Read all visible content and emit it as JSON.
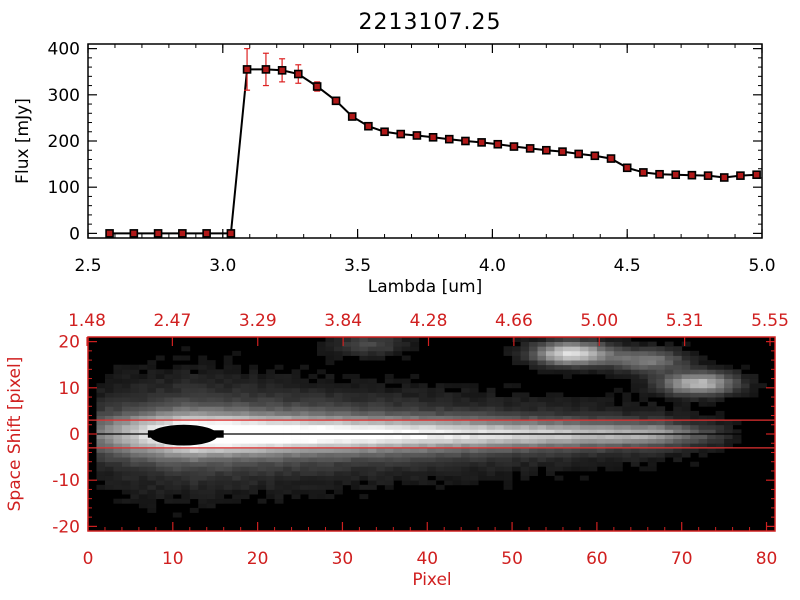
{
  "title": "2213107.25",
  "colors": {
    "axis_top": "#000000",
    "axis_bottom": "#d02020",
    "marker": "#b01818",
    "errorbar": "#dd2222",
    "line": "#000000",
    "image_bg": "#000000"
  },
  "chart_data": [
    {
      "type": "line",
      "name": "spectrum",
      "title": "2213107.25",
      "xlabel": "Lambda [um]",
      "ylabel": "Flux [mJy]",
      "xlim": [
        2.5,
        5.0
      ],
      "ylim": [
        -10,
        410
      ],
      "xticks": [
        "2.5",
        "3.0",
        "3.5",
        "4.0",
        "4.5",
        "5.0"
      ],
      "yticks": [
        "0",
        "100",
        "200",
        "300",
        "400"
      ],
      "grid": false,
      "x": [
        2.58,
        2.67,
        2.76,
        2.85,
        2.94,
        3.03,
        3.09,
        3.16,
        3.22,
        3.28,
        3.35,
        3.42,
        3.48,
        3.54,
        3.6,
        3.66,
        3.72,
        3.78,
        3.84,
        3.9,
        3.96,
        4.02,
        4.08,
        4.14,
        4.2,
        4.26,
        4.32,
        4.38,
        4.44,
        4.5,
        4.56,
        4.62,
        4.68,
        4.74,
        4.8,
        4.86,
        4.92,
        4.98
      ],
      "y": [
        0,
        0,
        0,
        0,
        0,
        0,
        355,
        355,
        353,
        345,
        318,
        287,
        253,
        232,
        220,
        215,
        212,
        208,
        204,
        200,
        197,
        193,
        188,
        184,
        180,
        177,
        172,
        168,
        162,
        142,
        132,
        128,
        127,
        126,
        125,
        121,
        125,
        127
      ],
      "yerr": [
        0,
        0,
        0,
        0,
        0,
        0,
        45,
        35,
        25,
        20,
        10,
        5,
        4,
        4,
        4,
        4,
        4,
        4,
        4,
        4,
        4,
        4,
        4,
        4,
        4,
        4,
        4,
        4,
        4,
        4,
        4,
        4,
        4,
        4,
        4,
        4,
        4,
        4
      ]
    },
    {
      "type": "heatmap",
      "name": "spectral-image",
      "xlabel": "Pixel",
      "ylabel": "Space Shift [pixel]",
      "xlim": [
        0,
        81
      ],
      "ylim": [
        -21,
        21
      ],
      "xticks": [
        "0",
        "10",
        "20",
        "30",
        "40",
        "50",
        "60",
        "70",
        "80"
      ],
      "yticks": [
        "-20",
        "-10",
        "0",
        "10",
        "20"
      ],
      "top_axis_ticks": [
        "1.48",
        "2.47",
        "3.29",
        "3.84",
        "4.28",
        "4.66",
        "5.00",
        "5.31",
        "5.55"
      ],
      "aperture_lines_y": [
        3,
        -3
      ],
      "center_line_y": 0,
      "saturated_core": {
        "x_range": [
          8,
          16
        ],
        "y_range": [
          -2.5,
          2
        ]
      },
      "trace": {
        "peak_x": 12,
        "fade_x": 75
      },
      "blobs": [
        {
          "x": 57,
          "y": 17.5,
          "intensity": 0.85
        },
        {
          "x": 66,
          "y": 16,
          "intensity": 0.45
        },
        {
          "x": 72,
          "y": 11,
          "intensity": 0.7
        },
        {
          "x": 33,
          "y": 19.5,
          "intensity": 0.25
        }
      ]
    }
  ]
}
